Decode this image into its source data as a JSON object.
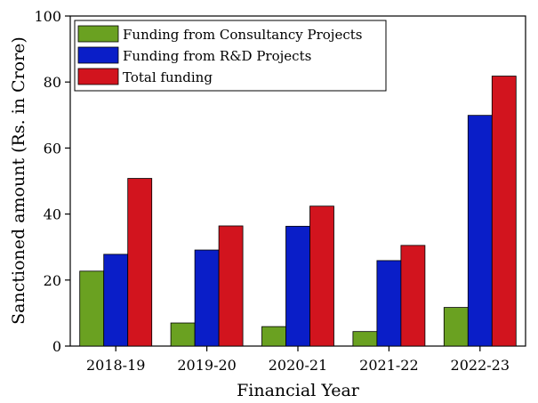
{
  "chart_data": {
    "type": "bar",
    "title": "",
    "xlabel": "Financial Year",
    "ylabel": "Sanctioned amount (Rs. in Crore)",
    "ylim": [
      0,
      100
    ],
    "yticks": [
      0,
      20,
      40,
      60,
      80,
      100
    ],
    "categories": [
      "2018-19",
      "2019-20",
      "2020-21",
      "2021-22",
      "2022-23"
    ],
    "legend_position": "top-left",
    "series": [
      {
        "name": "Funding from Consultancy Projects",
        "color": "#6aa121",
        "values": [
          22.7,
          7.0,
          5.9,
          4.4,
          11.7
        ]
      },
      {
        "name": "Funding from R&D Projects",
        "color": "#0a1ec8",
        "values": [
          27.8,
          29.1,
          36.3,
          25.9,
          69.9
        ]
      },
      {
        "name": "Total funding",
        "color": "#d2141e",
        "values": [
          50.8,
          36.4,
          42.4,
          30.5,
          81.8
        ]
      }
    ]
  }
}
